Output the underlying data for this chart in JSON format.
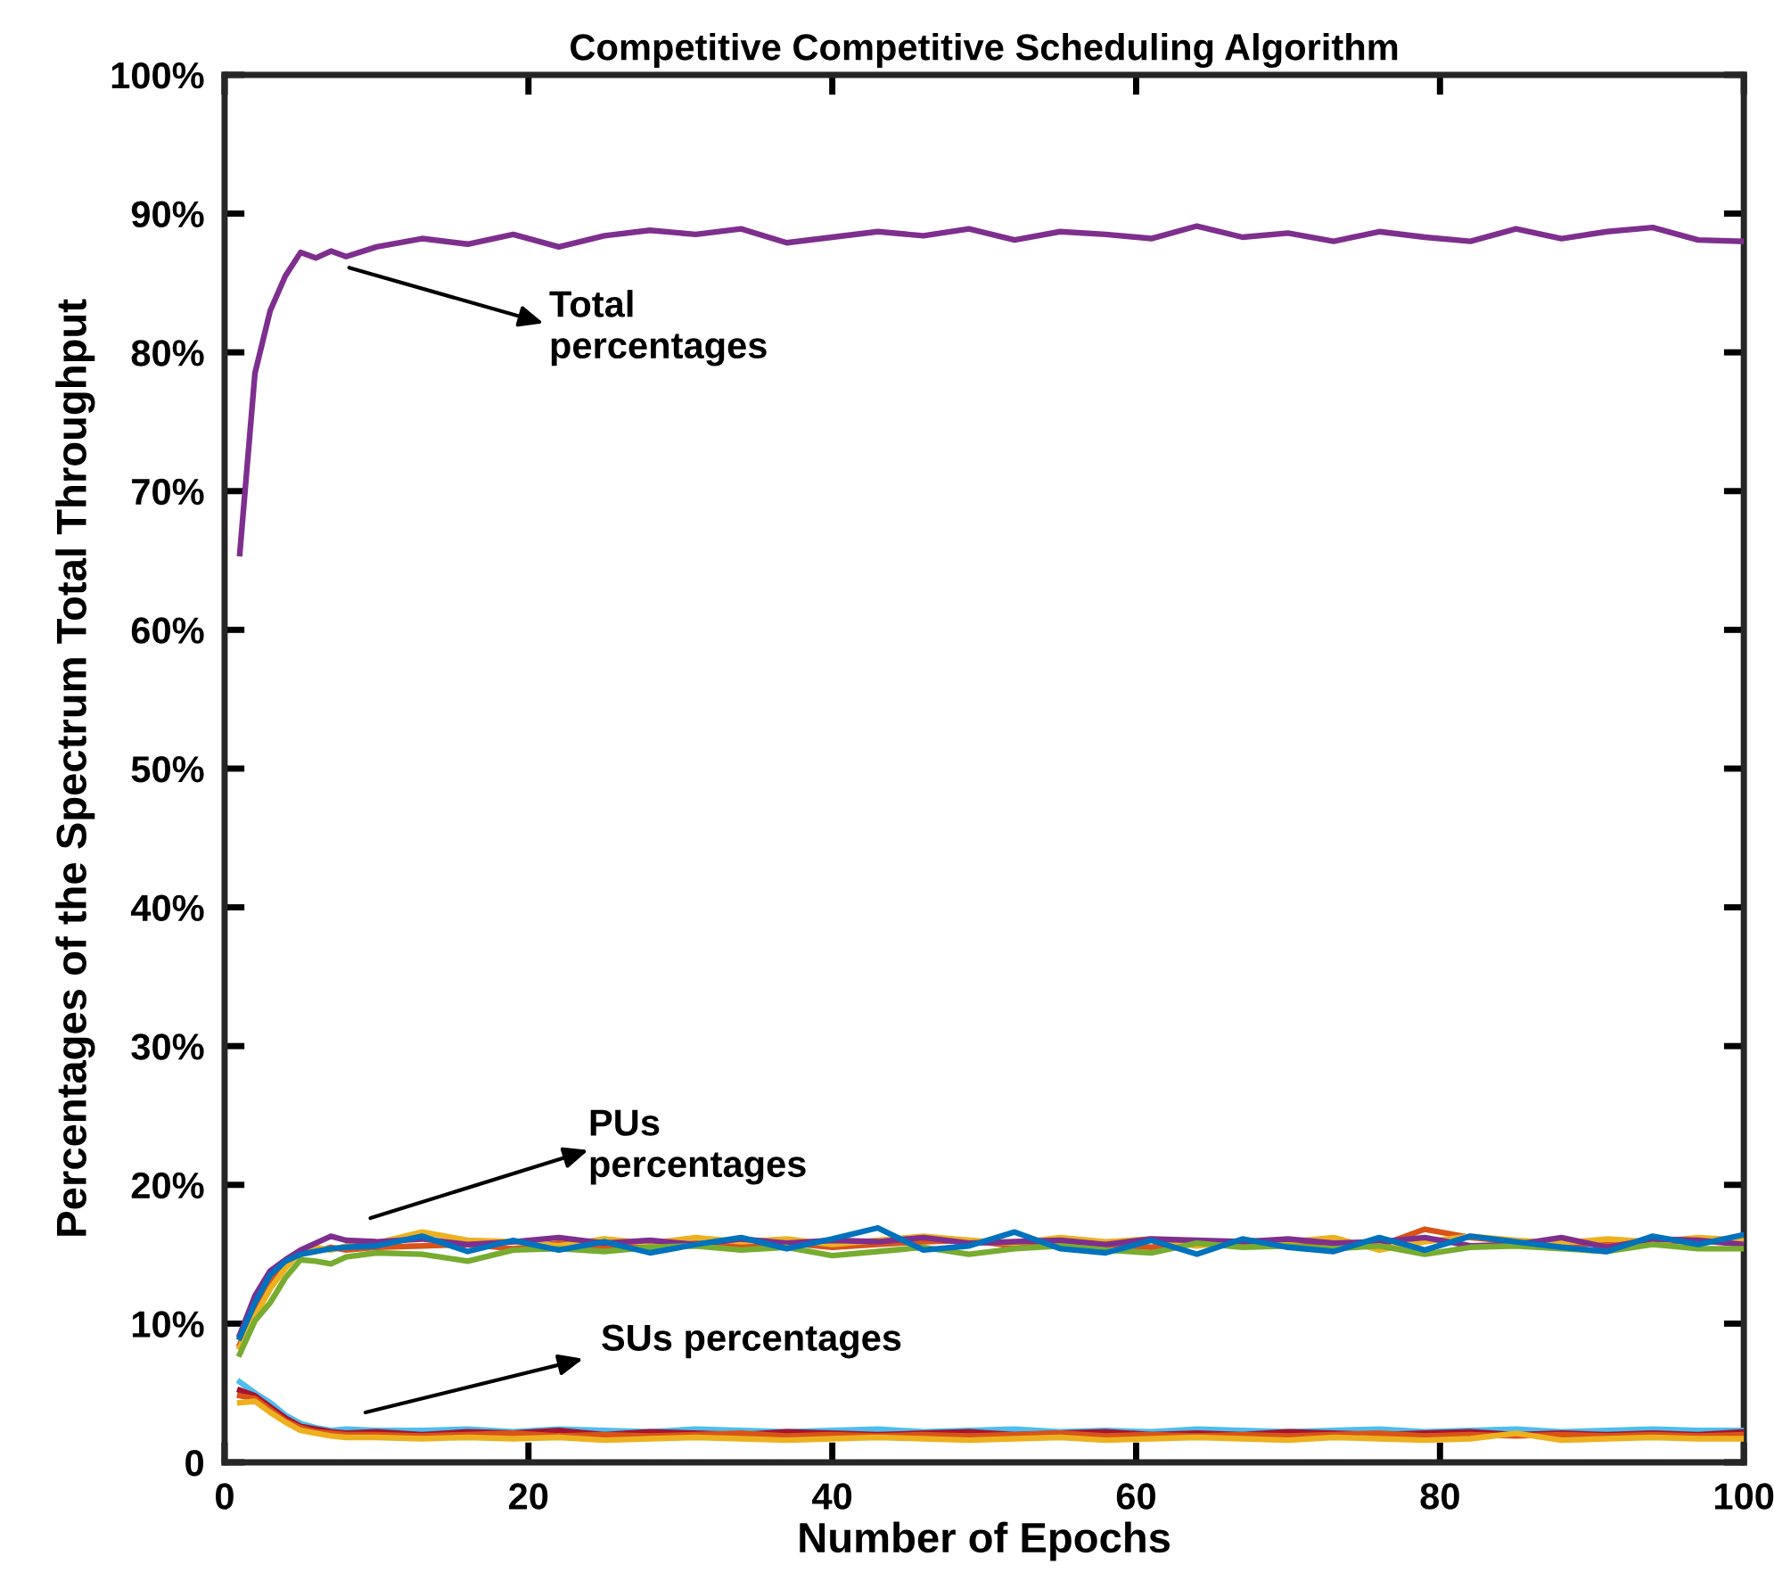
{
  "chart_data": {
    "type": "line",
    "title": "Competitive Competitive Scheduling Algorithm",
    "xlabel": "Number of Epochs",
    "ylabel": "Percentages of the Spectrum Total Throughput",
    "x": [
      1,
      2,
      3,
      4,
      5,
      6,
      7,
      8,
      10,
      13,
      16,
      19,
      22,
      25,
      28,
      31,
      34,
      37,
      40,
      43,
      46,
      49,
      52,
      55,
      58,
      61,
      64,
      67,
      70,
      73,
      76,
      79,
      82,
      85,
      88,
      91,
      94,
      97,
      100
    ],
    "series": [
      {
        "color": "#7e2f8e",
        "values": [
          65.5,
          78.5,
          83,
          85.5,
          87.2,
          86.8,
          87.3,
          86.9,
          87.6,
          88.2,
          87.8,
          88.5,
          87.6,
          88.4,
          88.8,
          88.5,
          88.9,
          87.9,
          88.3,
          88.7,
          88.4,
          88.9,
          88.1,
          88.7,
          88.5,
          88.2,
          89.1,
          88.3,
          88.6,
          88.0,
          88.7,
          88.3,
          88.0,
          88.9,
          88.2,
          88.7,
          89.0,
          88.1,
          88.0
        ]
      },
      {
        "color": "#0072bd",
        "values": [
          9,
          11.5,
          13.5,
          14.5,
          15,
          15.2,
          15.4,
          15.5,
          15.6,
          16.3,
          15.2,
          16.0,
          15.3,
          15.9,
          15.1,
          15.7,
          16.2,
          15.4,
          16.1,
          16.9,
          15.3,
          15.6,
          16.6,
          15.4,
          15.1,
          16.0,
          15.0,
          16.1,
          15.5,
          15.2,
          16.2,
          15.3,
          16.3,
          15.9,
          15.5,
          15.2,
          16.3,
          15.7,
          16.4
        ]
      },
      {
        "color": "#d95319",
        "values": [
          8.5,
          11,
          13,
          14.5,
          15,
          15.2,
          15.5,
          15.3,
          15.5,
          15.6,
          15.7,
          15.4,
          15.8,
          15.5,
          15.7,
          15.9,
          15.6,
          15.8,
          15.5,
          15.7,
          15.9,
          16.0,
          15.6,
          15.8,
          15.7,
          15.5,
          15.9,
          15.6,
          15.8,
          15.7,
          15.6,
          16.8,
          16.2,
          15.9,
          15.7,
          15.8,
          16.0,
          15.9,
          16.0
        ]
      },
      {
        "color": "#edb120",
        "values": [
          8.3,
          10.5,
          12.5,
          14,
          15.2,
          15.5,
          15.3,
          15.6,
          15.8,
          16.6,
          16.0,
          15.9,
          15.6,
          16.1,
          15.8,
          16.2,
          15.9,
          16.1,
          15.7,
          16.0,
          16.3,
          16.0,
          15.8,
          16.2,
          15.9,
          16.1,
          15.6,
          16.0,
          15.9,
          16.2,
          15.3,
          15.9,
          16.3,
          16.0,
          15.8,
          16.1,
          15.9,
          16.2,
          16.0
        ]
      },
      {
        "color": "#7e2f8e",
        "values": [
          9.2,
          12,
          13.8,
          14.6,
          15.3,
          15.8,
          16.3,
          16,
          15.9,
          16.1,
          15.7,
          15.9,
          16.2,
          15.8,
          16.0,
          15.7,
          16.1,
          15.8,
          16.0,
          15.9,
          16.2,
          15.8,
          15.9,
          16.0,
          15.7,
          16.1,
          16.0,
          15.9,
          16.1,
          15.8,
          15.9,
          16.2,
          15.6,
          15.7,
          16.2,
          15.5,
          16.1,
          16.0,
          15.7
        ]
      },
      {
        "color": "#77ac30",
        "values": [
          7.8,
          10.2,
          11.5,
          13.3,
          14.6,
          14.5,
          14.3,
          14.8,
          15.1,
          15.0,
          14.5,
          15.3,
          15.4,
          15.2,
          15.5,
          15.6,
          15.3,
          15.5,
          14.9,
          15.2,
          15.5,
          15.0,
          15.4,
          15.6,
          15.3,
          15.1,
          15.8,
          15.5,
          15.6,
          15.4,
          15.6,
          15.0,
          15.5,
          15.6,
          15.4,
          15.2,
          15.7,
          15.4,
          15.4
        ]
      },
      {
        "color": "#4dbeee",
        "values": [
          5.8,
          5,
          4.3,
          3.4,
          2.8,
          2.5,
          2.3,
          2.4,
          2.3,
          2.3,
          2.4,
          2.2,
          2.4,
          2.3,
          2.2,
          2.4,
          2.3,
          2.2,
          2.3,
          2.4,
          2.2,
          2.3,
          2.4,
          2.2,
          2.3,
          2.2,
          2.4,
          2.3,
          2.2,
          2.3,
          2.4,
          2.2,
          2.3,
          2.4,
          2.2,
          2.3,
          2.4,
          2.3,
          2.3
        ]
      },
      {
        "color": "#a2142f",
        "values": [
          5.2,
          4.8,
          4,
          3.2,
          2.6,
          2.4,
          2.2,
          2.1,
          2.2,
          2.0,
          2.2,
          2.1,
          2.3,
          2.0,
          2.2,
          2.1,
          2.0,
          2.2,
          2.1,
          2.0,
          2.1,
          2.2,
          2.0,
          2.1,
          2.2,
          2.0,
          2.1,
          2.0,
          2.2,
          2.1,
          2.0,
          2.1,
          2.2,
          2.0,
          2.1,
          2.0,
          2.1,
          2.0,
          2.2
        ]
      },
      {
        "color": "#d95319",
        "values": [
          4.8,
          4.6,
          3.8,
          3,
          2.5,
          2.2,
          2.1,
          2.0,
          2.0,
          1.9,
          2.0,
          2.1,
          1.9,
          2.0,
          1.9,
          2.0,
          2.1,
          1.9,
          2.0,
          1.9,
          2.0,
          1.9,
          2.0,
          2.1,
          1.9,
          2.0,
          1.9,
          2.0,
          1.9,
          2.0,
          2.1,
          1.9,
          2.0,
          1.9,
          2.0,
          1.9,
          2.0,
          1.9,
          2.0
        ]
      },
      {
        "color": "#edb120",
        "values": [
          4.3,
          4.4,
          3.6,
          2.9,
          2.3,
          2.1,
          1.9,
          1.8,
          1.8,
          1.7,
          1.8,
          1.7,
          1.8,
          1.6,
          1.7,
          1.8,
          1.7,
          1.6,
          1.7,
          1.8,
          1.7,
          1.6,
          1.7,
          1.8,
          1.6,
          1.7,
          1.8,
          1.7,
          1.6,
          1.8,
          1.7,
          1.6,
          1.7,
          2.1,
          1.6,
          1.7,
          1.8,
          1.7,
          1.7
        ]
      }
    ],
    "annotations": [
      "Total\npercentages",
      "PUs\npercentages",
      "SUs percentages"
    ],
    "xlim": [
      0,
      100
    ],
    "xticks": [
      0,
      20,
      40,
      60,
      80,
      100
    ],
    "ylim": [
      0,
      100
    ],
    "yticks": [
      0,
      {
        "value": 10,
        "label": "10%"
      },
      {
        "value": 20,
        "label": "20%"
      },
      {
        "value": 30,
        "label": "30%"
      },
      {
        "value": 40,
        "label": "40%"
      },
      {
        "value": 50,
        "label": "50%"
      },
      {
        "value": 60,
        "label": "60%"
      },
      {
        "value": 70,
        "label": "70%"
      },
      {
        "value": 80,
        "label": "80%"
      },
      {
        "value": 90,
        "label": "90%"
      },
      {
        "value": 100,
        "label": "100%"
      }
    ],
    "grid": false,
    "marker": "none",
    "line_style": "solid"
  }
}
